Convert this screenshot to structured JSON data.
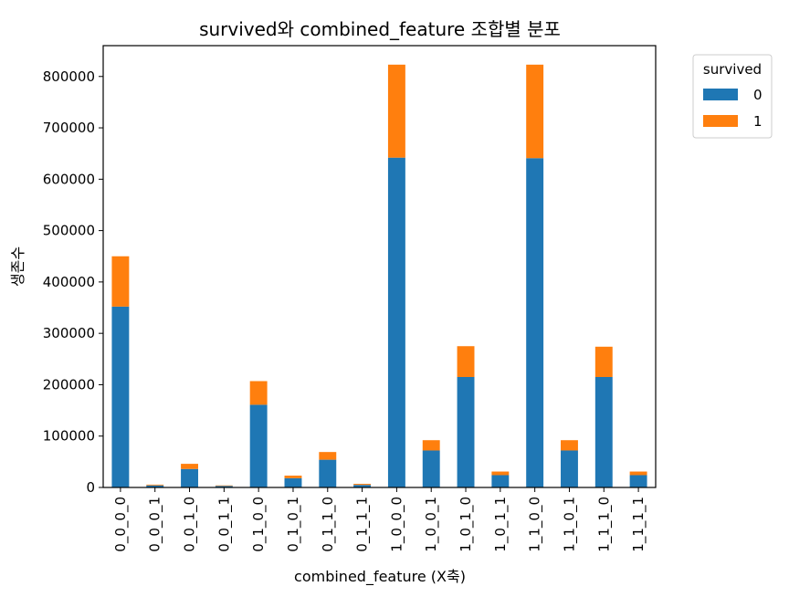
{
  "chart_data": {
    "type": "bar",
    "stacked": true,
    "title": "survived와 combined_feature 조합별 분포",
    "xlabel": "combined_feature (X축)",
    "ylabel": "생존수",
    "ylim": [
      0,
      860000
    ],
    "y_ticks": [
      0,
      100000,
      200000,
      300000,
      400000,
      500000,
      600000,
      700000,
      800000
    ],
    "y_tick_labels": [
      "0",
      "100000",
      "200000",
      "300000",
      "400000",
      "500000",
      "600000",
      "700000",
      "800000"
    ],
    "categories": [
      "0_0_0_0",
      "0_0_0_1",
      "0_0_1_0",
      "0_0_1_1",
      "0_1_0_0",
      "0_1_0_1",
      "0_1_1_0",
      "0_1_1_1",
      "1_0_0_0",
      "1_0_0_1",
      "1_0_1_0",
      "1_0_1_1",
      "1_1_0_0",
      "1_1_0_1",
      "1_1_1_0",
      "1_1_1_1"
    ],
    "series": [
      {
        "name": "0",
        "color": "#1f77b4",
        "values": [
          352000,
          4000,
          36000,
          3000,
          161000,
          18000,
          54000,
          5000,
          642000,
          72000,
          215000,
          24000,
          641000,
          72000,
          215000,
          24000
        ]
      },
      {
        "name": "1",
        "color": "#ff7f0e",
        "values": [
          98000,
          1500,
          10000,
          1000,
          46000,
          5000,
          15000,
          2000,
          181000,
          20000,
          60000,
          7000,
          182000,
          20000,
          59000,
          7000
        ]
      }
    ],
    "legend": {
      "title": "survived",
      "placement": "outside-top-right"
    },
    "grid": false
  }
}
